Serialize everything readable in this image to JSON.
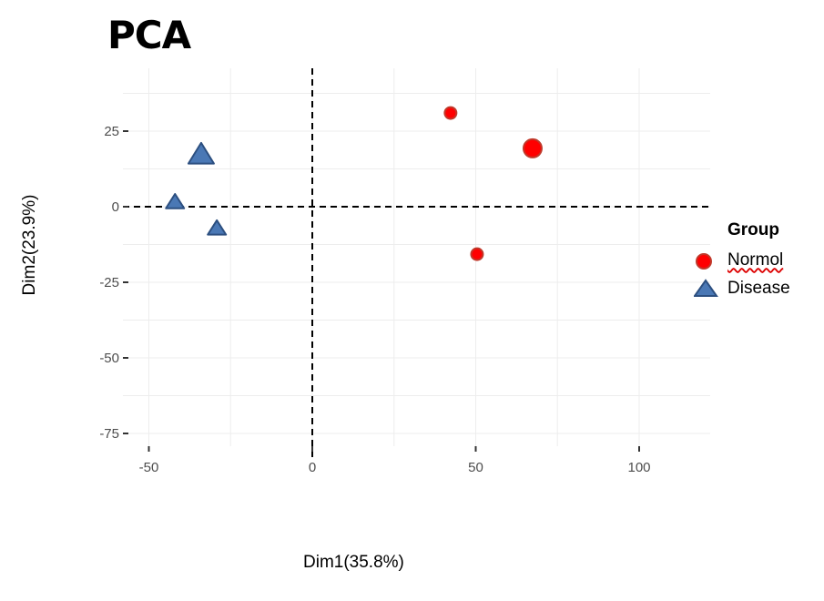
{
  "chart_data": {
    "type": "scatter",
    "title": "PCA",
    "xlabel": "Dim1(35.8%)",
    "ylabel": "Dim2(23.9%)",
    "xlim": [
      -55,
      122
    ],
    "ylim": [
      -80,
      45
    ],
    "xticks": [
      -50,
      0,
      50,
      100
    ],
    "yticks": [
      25,
      0,
      -25,
      -50,
      -75
    ],
    "grid": true,
    "legend": {
      "title": "Group",
      "placement": "right"
    },
    "series": [
      {
        "name": "Normol",
        "color": "#ff0000",
        "marker": "circle",
        "points": [
          {
            "x": 42.3,
            "y": 31.0,
            "size": "small"
          },
          {
            "x": 67.4,
            "y": 19.3,
            "size": "large"
          },
          {
            "x": 50.4,
            "y": -15.7,
            "size": "small"
          }
        ]
      },
      {
        "name": "Disease",
        "color": "#4a78b5",
        "marker": "triangle",
        "points": [
          {
            "x": -34.0,
            "y": 17.2,
            "size": "large"
          },
          {
            "x": -42.0,
            "y": 1.5,
            "size": "small"
          },
          {
            "x": -29.2,
            "y": -7.2,
            "size": "small"
          }
        ]
      }
    ]
  }
}
